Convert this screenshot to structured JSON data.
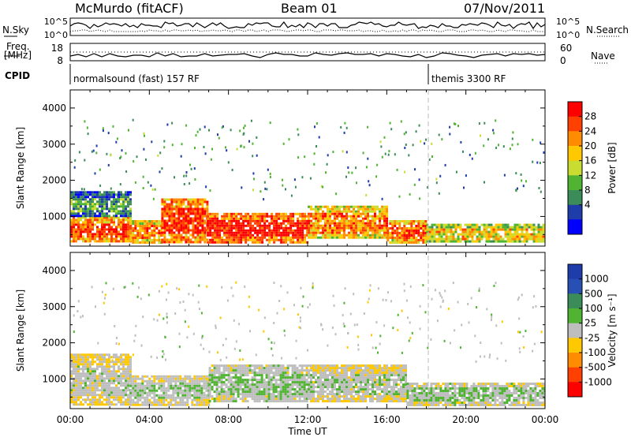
{
  "header": {
    "radar": "McMurdo (fitACF)",
    "beam": "Beam 01",
    "date": "07/Nov/2011"
  },
  "top_panels": {
    "nsky_label": "N.Sky",
    "nsearch_label": "N.Search",
    "noise_ticks": [
      "10^5",
      "10^0"
    ],
    "freq_label_1": "Freq.",
    "freq_label_2": "[MHz]",
    "freq_ticks": [
      "18",
      "8"
    ],
    "nave_label": "Nave",
    "nave_ticks": [
      "60",
      "0"
    ],
    "cpid_label": "CPID",
    "cpid_segments": [
      {
        "label": "normalsound (fast) 157 RF",
        "start_hour": 0
      },
      {
        "label": "themis 3300 RF",
        "start_hour": 18.1
      }
    ]
  },
  "panels": {
    "power": {
      "ylabel": "Slant Range [km]",
      "yticks": [
        "4000",
        "3000",
        "2000",
        "1000"
      ],
      "colorbar_label": "Power [dB]",
      "colorbar_ticks": [
        "28",
        "24",
        "20",
        "16",
        "12",
        "8",
        "4"
      ],
      "colorbar_colors": [
        "#ff0000",
        "#ff4000",
        "#ff8c00",
        "#ffc800",
        "#c8dc32",
        "#50b432",
        "#3c8c5a",
        "#1e3caa",
        "#0000ff"
      ]
    },
    "velocity": {
      "ylabel": "Slant Range [km]",
      "yticks": [
        "4000",
        "3000",
        "2000",
        "1000"
      ],
      "colorbar_label": "Velocity [m s⁻¹]",
      "colorbar_ticks": [
        "1000",
        "500",
        "100",
        "25",
        "-25",
        "-100",
        "-500",
        "-1000"
      ],
      "colorbar_colors": [
        "#1e3caa",
        "#2850b4",
        "#3c8c5a",
        "#50b432",
        "#bebebe",
        "#ffc800",
        "#ff8c00",
        "#ff4000",
        "#ff0000"
      ]
    }
  },
  "xaxis": {
    "label": "Time UT",
    "ticks": [
      "00:00",
      "04:00",
      "08:00",
      "12:00",
      "16:00",
      "20:00",
      "00:00"
    ]
  },
  "chart_data": [
    {
      "type": "heatmap",
      "title": "Power",
      "xlabel": "Time UT",
      "ylabel": "Slant Range [km]",
      "xlim": [
        0,
        24
      ],
      "ylim": [
        180,
        4500
      ],
      "clim": [
        0,
        30
      ],
      "colorbar_label": "Power [dB]",
      "bands": [
        {
          "t": [
            0.0,
            3.0
          ],
          "range_km": [
            300,
            1000
          ],
          "value": 25
        },
        {
          "t": [
            0.0,
            3.0
          ],
          "range_km": [
            1000,
            1700
          ],
          "value": 10
        },
        {
          "t": [
            3.0,
            4.6
          ],
          "range_km": [
            300,
            900
          ],
          "value": 22
        },
        {
          "t": [
            4.6,
            6.9
          ],
          "range_km": [
            300,
            1500
          ],
          "value": 26
        },
        {
          "t": [
            6.9,
            12.0
          ],
          "range_km": [
            300,
            1100
          ],
          "value": 28
        },
        {
          "t": [
            12.0,
            16.0
          ],
          "range_km": [
            400,
            1300
          ],
          "value": 22
        },
        {
          "t": [
            16.0,
            18.0
          ],
          "range_km": [
            300,
            900
          ],
          "value": 24
        },
        {
          "t": [
            18.0,
            24.0
          ],
          "range_km": [
            300,
            800
          ],
          "value": 18
        }
      ]
    },
    {
      "type": "heatmap",
      "title": "Velocity",
      "xlabel": "Time UT",
      "ylabel": "Slant Range [km]",
      "xlim": [
        0,
        24
      ],
      "ylim": [
        180,
        4500
      ],
      "clim": [
        -1000,
        1000
      ],
      "colorbar_label": "Velocity [m s⁻¹]",
      "bands": [
        {
          "t": [
            0.0,
            3.0
          ],
          "range_km": [
            300,
            1700
          ],
          "value": 0
        },
        {
          "t": [
            3.0,
            7.0
          ],
          "range_km": [
            300,
            1100
          ],
          "value": 60
        },
        {
          "t": [
            7.0,
            12.0
          ],
          "range_km": [
            400,
            1400
          ],
          "value": 120
        },
        {
          "t": [
            12.0,
            17.0
          ],
          "range_km": [
            400,
            1400
          ],
          "value": 30
        },
        {
          "t": [
            17.0,
            24.0
          ],
          "range_km": [
            300,
            900
          ],
          "value": 100
        }
      ]
    }
  ]
}
